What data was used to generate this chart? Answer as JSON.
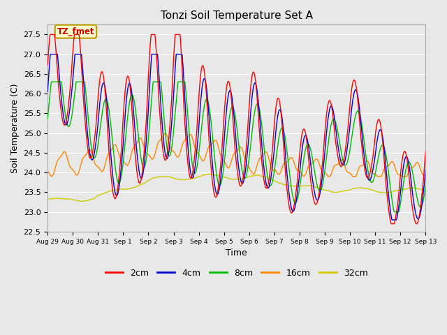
{
  "title": "Tonzi Soil Temperature Set A",
  "xlabel": "Time",
  "ylabel": "Soil Temperature (C)",
  "ylim": [
    22.5,
    27.75
  ],
  "annotation_text": "TZ_fmet",
  "annotation_bg": "#ffffcc",
  "annotation_border": "#bb9900",
  "plot_bg": "#e8e8e8",
  "fig_bg": "#e8e8e8",
  "legend_entries": [
    "2cm",
    "4cm",
    "8cm",
    "16cm",
    "32cm"
  ],
  "line_colors": [
    "#ff0000",
    "#0000cc",
    "#00bb00",
    "#ff8800",
    "#cccc00"
  ],
  "xtick_labels": [
    "Aug 29",
    "Aug 30",
    "Aug 31",
    "Sep 1",
    "Sep 2",
    "Sep 3",
    "Sep 4",
    "Sep 5",
    "Sep 6",
    "Sep 7",
    "Sep 8",
    "Sep 9",
    "Sep 10",
    "Sep 11",
    "Sep 12",
    "Sep 13"
  ]
}
